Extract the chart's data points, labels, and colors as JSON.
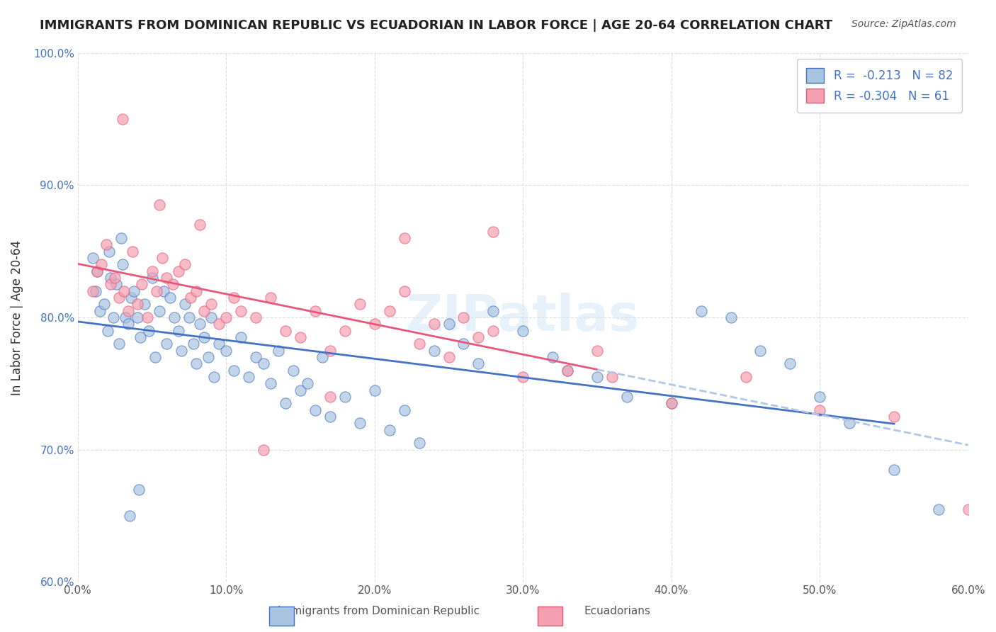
{
  "title": "IMMIGRANTS FROM DOMINICAN REPUBLIC VS ECUADORIAN IN LABOR FORCE | AGE 20-64 CORRELATION CHART",
  "source": "Source: ZipAtlas.com",
  "xlabel_ticks": [
    "0.0%",
    "10.0%",
    "20.0%",
    "30.0%",
    "40.0%",
    "50.0%",
    "60.0%"
  ],
  "xlabel_vals": [
    0.0,
    10.0,
    20.0,
    30.0,
    40.0,
    50.0,
    60.0
  ],
  "ylabel_ticks": [
    "60.0%",
    "70.0%",
    "80.0%",
    "90.0%",
    "100.0%"
  ],
  "ylabel_vals": [
    60.0,
    70.0,
    80.0,
    90.0,
    100.0
  ],
  "xlim": [
    0.0,
    60.0
  ],
  "ylim": [
    60.0,
    100.0
  ],
  "legend_r1": "R =  -0.213",
  "legend_n1": "N = 82",
  "legend_r2": "R = -0.304",
  "legend_n2": "N = 61",
  "blue_color": "#a8c4e0",
  "pink_color": "#f4a0b0",
  "blue_line_color": "#4472c4",
  "pink_line_color": "#e8567a",
  "dashed_line_color": "#b0c8e8",
  "ylabel_color": "#4472c4",
  "watermark": "ZIPatlas",
  "blue_scatter_x": [
    1.2,
    1.5,
    1.8,
    2.0,
    2.2,
    2.4,
    2.6,
    2.8,
    3.0,
    3.2,
    3.4,
    3.6,
    3.8,
    4.0,
    4.2,
    4.5,
    4.8,
    5.0,
    5.2,
    5.5,
    5.8,
    6.0,
    6.2,
    6.5,
    6.8,
    7.0,
    7.2,
    7.5,
    7.8,
    8.0,
    8.2,
    8.5,
    8.8,
    9.0,
    9.2,
    9.5,
    10.0,
    10.5,
    11.0,
    11.5,
    12.0,
    12.5,
    13.0,
    13.5,
    14.0,
    14.5,
    15.0,
    15.5,
    16.0,
    16.5,
    17.0,
    18.0,
    19.0,
    20.0,
    21.0,
    22.0,
    23.0,
    24.0,
    25.0,
    26.0,
    27.0,
    28.0,
    30.0,
    32.0,
    33.0,
    35.0,
    37.0,
    40.0,
    42.0,
    44.0,
    46.0,
    48.0,
    50.0,
    52.0,
    55.0,
    58.0,
    1.0,
    1.3,
    2.1,
    2.9,
    3.5,
    4.1
  ],
  "blue_scatter_y": [
    82.0,
    80.5,
    81.0,
    79.0,
    83.0,
    80.0,
    82.5,
    78.0,
    84.0,
    80.0,
    79.5,
    81.5,
    82.0,
    80.0,
    78.5,
    81.0,
    79.0,
    83.0,
    77.0,
    80.5,
    82.0,
    78.0,
    81.5,
    80.0,
    79.0,
    77.5,
    81.0,
    80.0,
    78.0,
    76.5,
    79.5,
    78.5,
    77.0,
    80.0,
    75.5,
    78.0,
    77.5,
    76.0,
    78.5,
    75.5,
    77.0,
    76.5,
    75.0,
    77.5,
    73.5,
    76.0,
    74.5,
    75.0,
    73.0,
    77.0,
    72.5,
    74.0,
    72.0,
    74.5,
    71.5,
    73.0,
    70.5,
    77.5,
    79.5,
    78.0,
    76.5,
    80.5,
    79.0,
    77.0,
    76.0,
    75.5,
    74.0,
    73.5,
    80.5,
    80.0,
    77.5,
    76.5,
    74.0,
    72.0,
    68.5,
    65.5,
    84.5,
    83.5,
    85.0,
    86.0,
    65.0,
    67.0
  ],
  "pink_scatter_x": [
    1.0,
    1.3,
    1.6,
    1.9,
    2.2,
    2.5,
    2.8,
    3.1,
    3.4,
    3.7,
    4.0,
    4.3,
    4.7,
    5.0,
    5.3,
    5.7,
    6.0,
    6.4,
    6.8,
    7.2,
    7.6,
    8.0,
    8.5,
    9.0,
    9.5,
    10.0,
    10.5,
    11.0,
    12.0,
    13.0,
    14.0,
    15.0,
    16.0,
    17.0,
    18.0,
    19.0,
    20.0,
    21.0,
    22.0,
    23.0,
    24.0,
    25.0,
    26.0,
    27.0,
    28.0,
    30.0,
    33.0,
    36.0,
    40.0,
    45.0,
    50.0,
    55.0,
    60.0,
    3.0,
    5.5,
    8.2,
    12.5,
    17.0,
    22.0,
    28.0,
    35.0
  ],
  "pink_scatter_y": [
    82.0,
    83.5,
    84.0,
    85.5,
    82.5,
    83.0,
    81.5,
    82.0,
    80.5,
    85.0,
    81.0,
    82.5,
    80.0,
    83.5,
    82.0,
    84.5,
    83.0,
    82.5,
    83.5,
    84.0,
    81.5,
    82.0,
    80.5,
    81.0,
    79.5,
    80.0,
    81.5,
    80.5,
    80.0,
    81.5,
    79.0,
    78.5,
    80.5,
    77.5,
    79.0,
    81.0,
    79.5,
    80.5,
    82.0,
    78.0,
    79.5,
    77.0,
    80.0,
    78.5,
    79.0,
    75.5,
    76.0,
    75.5,
    73.5,
    75.5,
    73.0,
    72.5,
    65.5,
    95.0,
    88.5,
    87.0,
    70.0,
    74.0,
    86.0,
    86.5,
    77.5
  ]
}
